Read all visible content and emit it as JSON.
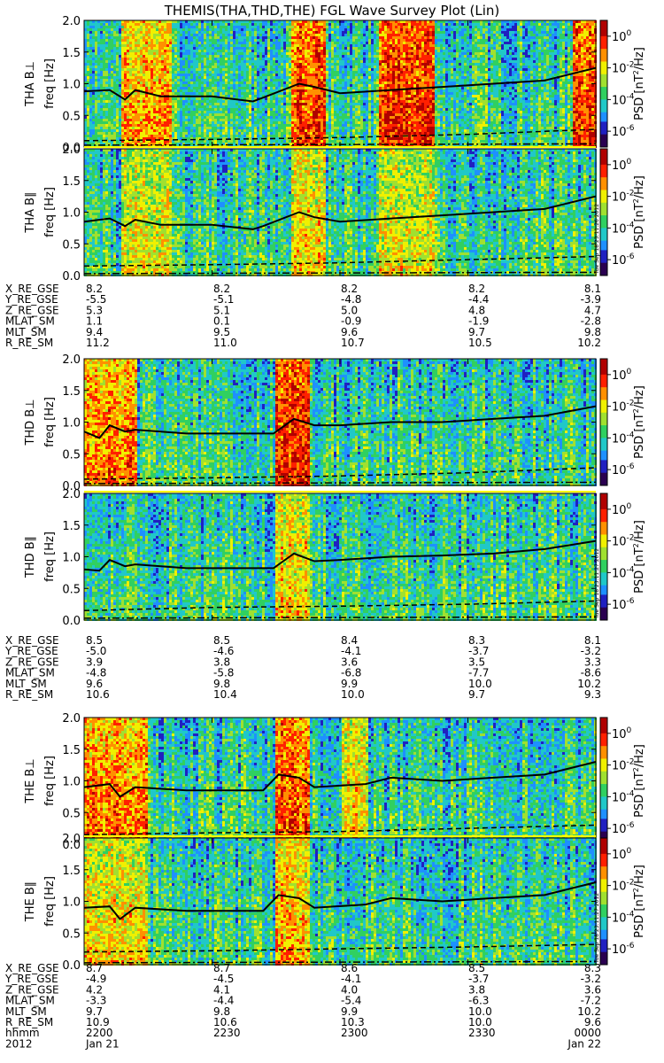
{
  "title": "THEMIS(THA,THD,THE) FGL Wave Survey Plot (Lin)",
  "colors": {
    "colormap": [
      "#2a0050",
      "#2020c0",
      "#1e90ff",
      "#20c8c8",
      "#30d060",
      "#a0e030",
      "#f0f000",
      "#ff9000",
      "#ff2000",
      "#b00000"
    ],
    "curve": "#000000",
    "separator": "#ffff00"
  },
  "stamps": [
    "Tue Sep 18 23:11:26 2012",
    "Tue Sep 18 23:11:27 2012",
    "Tue Sep 18 23:11:27 2012"
  ],
  "colorbar": {
    "label": "PSD [nT²/Hz]",
    "label_parts": [
      "PSD [nT",
      "/Hz]"
    ],
    "label_sup": "2",
    "ticks": [
      {
        "base": "10",
        "exp": "0"
      },
      {
        "base": "10",
        "exp": "-2"
      },
      {
        "base": "10",
        "exp": "-4"
      },
      {
        "base": "10",
        "exp": "-6"
      }
    ],
    "range_log10": [
      -7,
      1
    ]
  },
  "y_axis": {
    "unit_label": "freq [Hz]",
    "ticks": [
      "0.0",
      "0.5",
      "1.0",
      "1.5",
      "2.0"
    ],
    "range": [
      0,
      2.0
    ]
  },
  "groups": [
    {
      "probe": "THA",
      "eph_rows": [
        {
          "label": "X_RE_GSE",
          "values": [
            "8.2",
            "8.2",
            "8.2",
            "8.2",
            "8.1"
          ]
        },
        {
          "label": "Y_RE_GSE",
          "values": [
            "-5.5",
            "-5.1",
            "-4.8",
            "-4.4",
            "-3.9"
          ]
        },
        {
          "label": "Z_RE_GSE",
          "values": [
            "5.3",
            "5.1",
            "5.0",
            "4.8",
            "4.7"
          ]
        },
        {
          "label": "MLAT_SM",
          "values": [
            "1.1",
            "0.1",
            "-0.9",
            "-1.9",
            "-2.8"
          ]
        },
        {
          "label": "MLT_SM",
          "values": [
            "9.4",
            "9.5",
            "9.6",
            "9.7",
            "9.8"
          ]
        },
        {
          "label": "R_RE_SM",
          "values": [
            "11.2",
            "11.0",
            "10.7",
            "10.5",
            "10.2"
          ]
        }
      ]
    },
    {
      "probe": "THD",
      "eph_rows": [
        {
          "label": "X_RE_GSE",
          "values": [
            "8.5",
            "8.5",
            "8.4",
            "8.3",
            "8.1"
          ]
        },
        {
          "label": "Y_RE_GSE",
          "values": [
            "-5.0",
            "-4.6",
            "-4.1",
            "-3.7",
            "-3.2"
          ]
        },
        {
          "label": "Z_RE_GSE",
          "values": [
            "3.9",
            "3.8",
            "3.6",
            "3.5",
            "3.3"
          ]
        },
        {
          "label": "MLAT_SM",
          "values": [
            "-4.8",
            "-5.8",
            "-6.8",
            "-7.7",
            "-8.6"
          ]
        },
        {
          "label": "MLT_SM",
          "values": [
            "9.6",
            "9.8",
            "9.9",
            "10.0",
            "10.2"
          ]
        },
        {
          "label": "R_RE_SM",
          "values": [
            "10.6",
            "10.4",
            "10.0",
            "9.7",
            "9.3"
          ]
        }
      ]
    },
    {
      "probe": "THE",
      "eph_rows": [
        {
          "label": "X_RE_GSE",
          "values": [
            "8.7",
            "8.7",
            "8.6",
            "8.5",
            "8.3"
          ]
        },
        {
          "label": "Y_RE_GSE",
          "values": [
            "-4.9",
            "-4.5",
            "-4.1",
            "-3.7",
            "-3.2"
          ]
        },
        {
          "label": "Z_RE_GSE",
          "values": [
            "4.2",
            "4.1",
            "4.0",
            "3.8",
            "3.6"
          ]
        },
        {
          "label": "MLAT_SM",
          "values": [
            "-3.3",
            "-4.4",
            "-5.4",
            "-6.3",
            "-7.2"
          ]
        },
        {
          "label": "MLT_SM",
          "values": [
            "9.7",
            "9.8",
            "9.9",
            "10.0",
            "10.2"
          ]
        },
        {
          "label": "R_RE_SM",
          "values": [
            "10.9",
            "10.6",
            "10.3",
            "10.0",
            "9.6"
          ]
        }
      ],
      "time_rows": [
        {
          "label": "hhmm",
          "values": [
            "2200",
            "2230",
            "2300",
            "2330",
            "0000"
          ]
        },
        {
          "label": "2012",
          "values": [
            "Jan 21",
            "",
            "",
            "",
            "Jan 22"
          ]
        }
      ]
    }
  ],
  "chart_data": {
    "type": "heatmap",
    "title": "THEMIS(THA,THD,THE) FGL Wave Survey Plot (Lin)",
    "x_ticks": [
      "2200",
      "2230",
      "2300",
      "2330",
      "0000"
    ],
    "x_range": [
      "2012 Jan 21 2200",
      "2012 Jan 22 0000"
    ],
    "ylim": [
      0,
      2.0
    ],
    "z_scale": "log10",
    "zlim": [
      -7,
      1
    ],
    "panels": [
      {
        "ylabel": "THA B⊥",
        "ylabel_parts": [
          "THA B",
          "⊥"
        ],
        "curve_x": [
          0,
          0.05,
          0.08,
          0.1,
          0.15,
          0.25,
          0.33,
          0.35,
          0.42,
          0.45,
          0.5,
          0.6,
          0.7,
          0.8,
          0.9,
          1.0
        ],
        "curve_y": [
          0.88,
          0.9,
          0.75,
          0.9,
          0.8,
          0.8,
          0.72,
          0.78,
          1.0,
          0.95,
          0.85,
          0.9,
          0.95,
          1.0,
          1.05,
          1.25
        ],
        "dashed_y": [
          0.1,
          0.12,
          0.15,
          0.2,
          0.28
        ],
        "bands": [
          [
            0.07,
            0.17,
            0.8
          ],
          [
            0.4,
            0.47,
            0.9
          ],
          [
            0.57,
            0.68,
            0.95
          ],
          [
            0.95,
            1.0,
            0.9
          ]
        ]
      },
      {
        "ylabel": "THA B∥",
        "ylabel_parts": [
          "THA B",
          "∥"
        ],
        "curve_x": [
          0,
          0.05,
          0.08,
          0.1,
          0.15,
          0.25,
          0.33,
          0.35,
          0.42,
          0.45,
          0.5,
          0.6,
          0.7,
          0.8,
          0.9,
          1.0
        ],
        "curve_y": [
          0.85,
          0.9,
          0.78,
          0.88,
          0.8,
          0.8,
          0.73,
          0.78,
          1.0,
          0.92,
          0.85,
          0.9,
          0.95,
          1.0,
          1.05,
          1.25
        ],
        "dashed_y": [
          0.15,
          0.17,
          0.2,
          0.25,
          0.3
        ],
        "bands": [
          [
            0.07,
            0.17,
            0.7
          ],
          [
            0.4,
            0.47,
            0.75
          ],
          [
            0.57,
            0.68,
            0.7
          ]
        ]
      },
      {
        "ylabel": "THD B⊥",
        "ylabel_parts": [
          "THD B",
          "⊥"
        ],
        "curve_x": [
          0,
          0.03,
          0.05,
          0.08,
          0.1,
          0.2,
          0.37,
          0.41,
          0.45,
          0.5,
          0.6,
          0.7,
          0.8,
          0.9,
          1.0
        ],
        "curve_y": [
          0.85,
          0.75,
          0.95,
          0.85,
          0.88,
          0.82,
          0.82,
          1.05,
          0.95,
          0.95,
          1.0,
          1.0,
          1.05,
          1.1,
          1.25
        ],
        "dashed_y": [
          0.1,
          0.12,
          0.15,
          0.2,
          0.28
        ],
        "bands": [
          [
            0.0,
            0.1,
            0.85
          ],
          [
            0.37,
            0.44,
            0.95
          ]
        ]
      },
      {
        "ylabel": "THD B∥",
        "ylabel_parts": [
          "THD B",
          "∥"
        ],
        "curve_x": [
          0,
          0.03,
          0.05,
          0.08,
          0.1,
          0.2,
          0.37,
          0.41,
          0.45,
          0.5,
          0.6,
          0.7,
          0.8,
          0.9,
          1.0
        ],
        "curve_y": [
          0.8,
          0.78,
          0.95,
          0.85,
          0.88,
          0.82,
          0.82,
          1.05,
          0.93,
          0.95,
          1.0,
          1.02,
          1.05,
          1.12,
          1.25
        ],
        "dashed_y": [
          0.15,
          0.2,
          0.22,
          0.25,
          0.3
        ],
        "bands": [
          [
            0.37,
            0.44,
            0.75
          ]
        ]
      },
      {
        "ylabel": "THE B⊥",
        "ylabel_parts": [
          "THE B",
          "⊥"
        ],
        "curve_x": [
          0,
          0.05,
          0.07,
          0.1,
          0.2,
          0.35,
          0.38,
          0.42,
          0.45,
          0.55,
          0.6,
          0.7,
          0.8,
          0.9,
          1.0
        ],
        "curve_y": [
          0.9,
          0.95,
          0.75,
          0.9,
          0.85,
          0.85,
          1.1,
          1.05,
          0.9,
          0.95,
          1.05,
          1.0,
          1.05,
          1.1,
          1.3
        ],
        "dashed_y": [
          0.15,
          0.18,
          0.2,
          0.25,
          0.3
        ],
        "bands": [
          [
            0.0,
            0.12,
            0.85
          ],
          [
            0.37,
            0.44,
            0.9
          ],
          [
            0.5,
            0.55,
            0.75
          ]
        ]
      },
      {
        "ylabel": "THE B∥",
        "ylabel_parts": [
          "THE B",
          "∥"
        ],
        "curve_x": [
          0,
          0.05,
          0.07,
          0.1,
          0.2,
          0.35,
          0.38,
          0.42,
          0.45,
          0.55,
          0.6,
          0.7,
          0.8,
          0.9,
          1.0
        ],
        "curve_y": [
          0.9,
          0.92,
          0.72,
          0.9,
          0.85,
          0.85,
          1.1,
          1.05,
          0.9,
          0.95,
          1.05,
          1.0,
          1.05,
          1.1,
          1.3
        ],
        "dashed_y": [
          0.2,
          0.22,
          0.25,
          0.28,
          0.32
        ],
        "bands": [
          [
            0.0,
            0.12,
            0.75
          ],
          [
            0.37,
            0.44,
            0.8
          ]
        ]
      }
    ]
  }
}
